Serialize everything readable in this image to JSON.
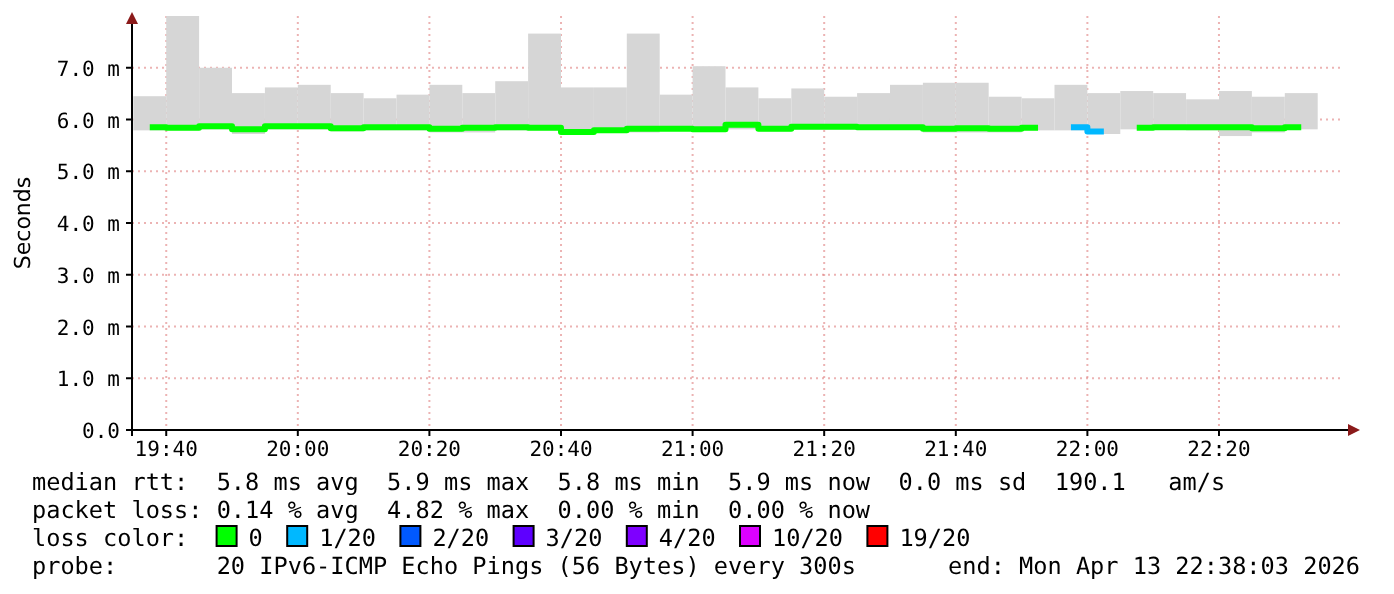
{
  "chart_data": {
    "type": "bar",
    "ylabel": "Seconds",
    "legend_title": "loss color:",
    "legend": "bottom",
    "grid": true,
    "x": [
      19.625,
      19.7083,
      19.7917,
      19.875,
      19.9583,
      20.0417,
      20.125,
      20.2083,
      20.2917,
      20.375,
      20.4583,
      20.5417,
      20.625,
      20.7083,
      20.7917,
      20.875,
      20.9583,
      21.0417,
      21.125,
      21.2083,
      21.2917,
      21.375,
      21.4583,
      21.5417,
      21.625,
      21.7083,
      21.7917,
      21.875,
      21.9583,
      22.0417,
      22.125,
      22.2083,
      22.2917,
      22.375,
      22.4583,
      22.5417
    ],
    "xlim": [
      19.58,
      22.65
    ],
    "xticks": [
      {
        "value": 19.6667,
        "label": "19:40"
      },
      {
        "value": 20.0,
        "label": "20:00"
      },
      {
        "value": 20.3333,
        "label": "20:20"
      },
      {
        "value": 20.6667,
        "label": "20:40"
      },
      {
        "value": 21.0,
        "label": "21:00"
      },
      {
        "value": 21.3333,
        "label": "21:20"
      },
      {
        "value": 21.6667,
        "label": "21:40"
      },
      {
        "value": 22.0,
        "label": "22:00"
      },
      {
        "value": 22.3333,
        "label": "22:20"
      }
    ],
    "ylim": [
      0,
      8.0
    ],
    "yticks": [
      {
        "value": 0,
        "label": "0.0"
      },
      {
        "value": 1,
        "label": "1.0 m"
      },
      {
        "value": 2,
        "label": "2.0 m"
      },
      {
        "value": 3,
        "label": "3.0 m"
      },
      {
        "value": 4,
        "label": "4.0 m"
      },
      {
        "value": 5,
        "label": "5.0 m"
      },
      {
        "value": 6,
        "label": "6.0 m"
      },
      {
        "value": 7,
        "label": "7.0 m"
      }
    ],
    "series": [
      {
        "color": "#d6d6d6",
        "base": [
          5.79,
          5.79,
          5.81,
          5.72,
          5.81,
          5.81,
          5.77,
          5.79,
          5.79,
          5.75,
          5.75,
          5.79,
          5.79,
          5.72,
          5.79,
          5.75,
          5.79,
          5.79,
          5.81,
          5.77,
          5.81,
          5.81,
          5.81,
          5.81,
          5.75,
          5.75,
          5.75,
          5.79,
          5.79,
          5.72,
          5.81,
          5.81,
          5.79,
          5.68,
          5.75,
          5.81
        ],
        "values": [
          0.66,
          2.21,
          1.19,
          0.79,
          0.81,
          0.86,
          0.74,
          0.62,
          0.69,
          0.92,
          0.76,
          0.95,
          1.87,
          0.9,
          0.83,
          1.91,
          0.69,
          1.24,
          0.81,
          0.64,
          0.79,
          0.63,
          0.7,
          0.86,
          0.96,
          0.96,
          0.69,
          0.62,
          0.88,
          0.79,
          0.74,
          0.7,
          0.6,
          0.87,
          0.69,
          0.7
        ]
      },
      {
        "type": "step",
        "name": "0",
        "color": "#00ff00",
        "values": [
          5.85,
          5.84,
          5.87,
          5.81,
          5.87,
          5.87,
          5.83,
          5.85,
          5.85,
          5.82,
          5.84,
          5.85,
          5.84,
          5.76,
          5.79,
          5.82,
          5.82,
          5.81,
          5.9,
          5.82,
          5.86,
          5.86,
          5.85,
          5.85,
          5.82,
          5.83,
          5.82,
          5.84,
          null,
          null,
          5.84,
          5.85,
          5.85,
          5.85,
          5.83,
          5.85
        ]
      },
      {
        "type": "step",
        "name": "1/20",
        "color": "#00b8ff",
        "values": [
          null,
          null,
          null,
          null,
          null,
          null,
          null,
          null,
          null,
          null,
          null,
          null,
          null,
          null,
          null,
          null,
          null,
          null,
          null,
          null,
          null,
          null,
          null,
          null,
          null,
          null,
          null,
          null,
          5.85,
          5.77,
          null,
          null,
          null,
          null,
          null,
          null
        ]
      },
      {
        "type": "step",
        "name": "2/20",
        "color": "#0059ff",
        "values": [
          null,
          null,
          null,
          null,
          null,
          null,
          null,
          null,
          null,
          null,
          null,
          null,
          null,
          null,
          null,
          null,
          null,
          null,
          null,
          null,
          null,
          null,
          null,
          null,
          null,
          null,
          null,
          null,
          null,
          null,
          null,
          null,
          null,
          null,
          null,
          null
        ]
      },
      {
        "type": "step",
        "name": "3/20",
        "color": "#5e00ff",
        "values": [
          null,
          null,
          null,
          null,
          null,
          null,
          null,
          null,
          null,
          null,
          null,
          null,
          null,
          null,
          null,
          null,
          null,
          null,
          null,
          null,
          null,
          null,
          null,
          null,
          null,
          null,
          null,
          null,
          null,
          null,
          null,
          null,
          null,
          null,
          null,
          null
        ]
      },
      {
        "type": "step",
        "name": "4/20",
        "color": "#7e00ff",
        "values": [
          null,
          null,
          null,
          null,
          null,
          null,
          null,
          null,
          null,
          null,
          null,
          null,
          null,
          null,
          null,
          null,
          null,
          null,
          null,
          null,
          null,
          null,
          null,
          null,
          null,
          null,
          null,
          null,
          null,
          null,
          null,
          null,
          null,
          null,
          null,
          null
        ]
      },
      {
        "type": "step",
        "name": "10/20",
        "color": "#dd00ff",
        "values": [
          null,
          null,
          null,
          null,
          null,
          null,
          null,
          null,
          null,
          null,
          null,
          null,
          null,
          null,
          null,
          null,
          null,
          null,
          null,
          null,
          null,
          null,
          null,
          null,
          null,
          null,
          null,
          null,
          null,
          null,
          null,
          null,
          null,
          null,
          null,
          null
        ]
      },
      {
        "type": "step",
        "name": "19/20",
        "color": "#ff0000",
        "values": [
          null,
          null,
          null,
          null,
          null,
          null,
          null,
          null,
          null,
          null,
          null,
          null,
          null,
          null,
          null,
          null,
          null,
          null,
          null,
          null,
          null,
          null,
          null,
          null,
          null,
          null,
          null,
          null,
          null,
          null,
          null,
          null,
          null,
          null,
          null,
          null
        ]
      }
    ],
    "annotations": [
      "median rtt:  5.8 ms avg  5.9 ms max  5.8 ms min  5.9 ms now  0.0 ms sd  190.1   am/s",
      "packet loss: 0.14 % avg  4.82 % max  0.00 % min  0.00 % now",
      "probe:       20 IPv6-ICMP Echo Pings (56 Bytes) every 300s",
      "end: Mon Apr 13 22:38:03 2026"
    ]
  }
}
